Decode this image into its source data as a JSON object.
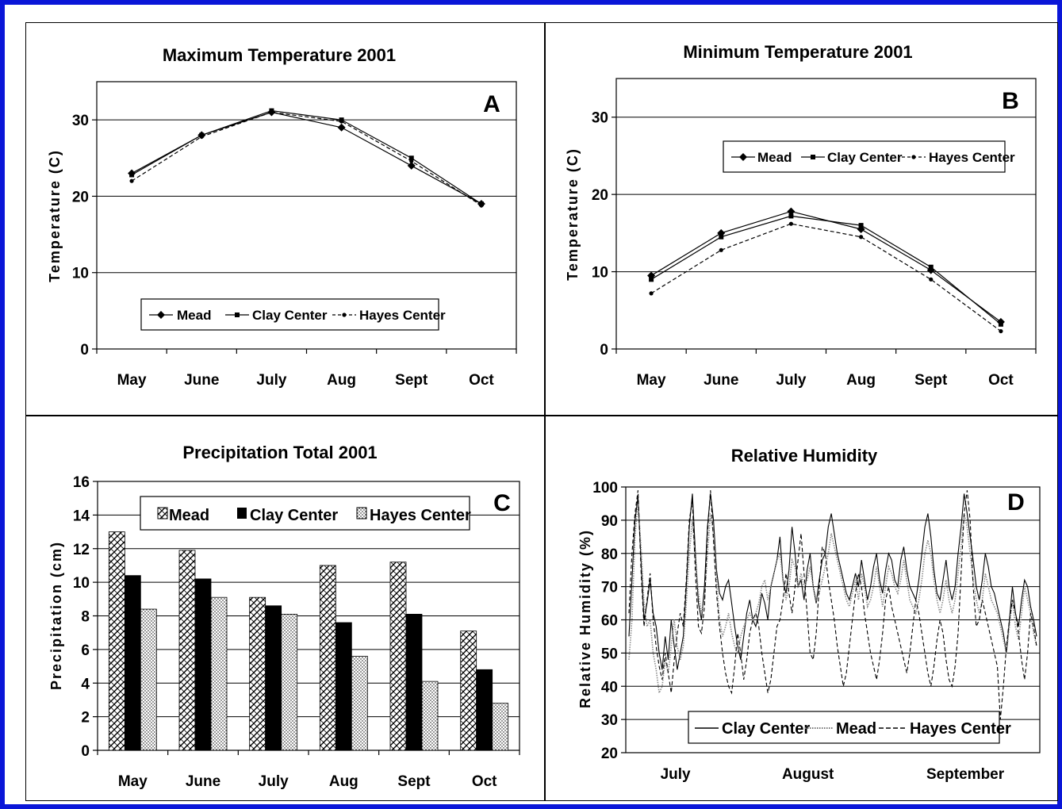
{
  "colors": {
    "frame": "#0a16d8",
    "ink": "#000000",
    "background": "#ffffff"
  },
  "chart_data": [
    {
      "id": "A",
      "type": "line",
      "title": "Maximum Temperature 2001",
      "panel_letter": "A",
      "ylabel": "Temperature (C)",
      "xlabel": "",
      "categories": [
        "May",
        "June",
        "July",
        "Aug",
        "Sept",
        "Oct"
      ],
      "ylim": [
        0,
        35
      ],
      "yticks": [
        0,
        10,
        20,
        30
      ],
      "grid": true,
      "legend": "bottom",
      "series": [
        {
          "name": "Mead",
          "marker": "diamond",
          "dash": "solid",
          "values": [
            23,
            28,
            31,
            29,
            24,
            19
          ]
        },
        {
          "name": "Clay Center",
          "marker": "square",
          "dash": "solid",
          "values": [
            22.8,
            28,
            31.2,
            30,
            25,
            19
          ]
        },
        {
          "name": "Hayes Center",
          "marker": "dot",
          "dash": "dashed",
          "values": [
            22,
            27.8,
            31,
            29.8,
            24.6,
            18.8
          ]
        }
      ]
    },
    {
      "id": "B",
      "type": "line",
      "title": "Minimum Temperature 2001",
      "panel_letter": "B",
      "ylabel": "Temperature (C)",
      "xlabel": "",
      "categories": [
        "May",
        "June",
        "July",
        "Aug",
        "Sept",
        "Oct"
      ],
      "ylim": [
        0,
        35
      ],
      "yticks": [
        0,
        10,
        20,
        30
      ],
      "grid": true,
      "legend": "top",
      "series": [
        {
          "name": "Mead",
          "marker": "diamond",
          "dash": "solid",
          "values": [
            9.5,
            15,
            17.8,
            15.5,
            10.2,
            3.5
          ]
        },
        {
          "name": "Clay Center",
          "marker": "square",
          "dash": "solid",
          "values": [
            9,
            14.5,
            17.2,
            16,
            10.6,
            3.2
          ]
        },
        {
          "name": "Hayes Center",
          "marker": "dot",
          "dash": "dashed",
          "values": [
            7.2,
            12.8,
            16.2,
            14.5,
            9,
            2.3
          ]
        }
      ]
    },
    {
      "id": "C",
      "type": "bar",
      "title": "Precipitation Total 2001",
      "panel_letter": "C",
      "ylabel": "Precipitation (cm)",
      "xlabel": "",
      "categories": [
        "May",
        "June",
        "July",
        "Aug",
        "Sept",
        "Oct"
      ],
      "ylim": [
        0,
        16
      ],
      "yticks": [
        0,
        2,
        4,
        6,
        8,
        10,
        12,
        14,
        16
      ],
      "grid": true,
      "legend": "top",
      "series": [
        {
          "name": "Mead",
          "pattern": "crosshatch",
          "values": [
            13,
            11.9,
            9.1,
            11,
            11.2,
            7.1
          ]
        },
        {
          "name": "Clay Center",
          "pattern": "solid",
          "values": [
            10.4,
            10.2,
            8.6,
            7.6,
            8.1,
            4.8
          ]
        },
        {
          "name": "Hayes Center",
          "pattern": "dotted",
          "values": [
            8.4,
            9.1,
            8.1,
            5.6,
            4.1,
            2.8
          ]
        }
      ]
    },
    {
      "id": "D",
      "type": "line",
      "title": "Relative Humidity",
      "panel_letter": "D",
      "ylabel": "Relative Humidity (%)",
      "xlabel": "",
      "x_tick_labels": [
        "July",
        "August",
        "September"
      ],
      "ylim": [
        20,
        100
      ],
      "yticks": [
        20,
        30,
        40,
        50,
        60,
        70,
        80,
        90,
        100
      ],
      "grid": true,
      "legend": "bottom",
      "series": [
        {
          "name": "Clay Center",
          "style": "solid",
          "values": [
            55,
            72,
            90,
            97,
            78,
            60,
            65,
            72,
            62,
            58,
            50,
            45,
            55,
            48,
            60,
            52,
            45,
            50,
            55,
            70,
            88,
            98,
            80,
            65,
            60,
            70,
            88,
            98,
            90,
            75,
            68,
            66,
            70,
            72,
            65,
            58,
            52,
            48,
            55,
            62,
            66,
            60,
            58,
            62,
            68,
            65,
            60,
            70,
            74,
            78,
            85,
            72,
            68,
            75,
            88,
            80,
            70,
            72,
            66,
            75,
            80,
            70,
            65,
            72,
            78,
            80,
            88,
            92,
            86,
            80,
            76,
            72,
            68,
            66,
            70,
            74,
            70,
            78,
            72,
            66,
            70,
            76,
            80,
            72,
            68,
            75,
            80,
            78,
            72,
            70,
            78,
            82,
            75,
            70,
            68,
            66,
            72,
            80,
            88,
            92,
            85,
            75,
            68,
            66,
            72,
            78,
            70,
            66,
            70,
            80,
            88,
            98,
            92,
            85,
            78,
            70,
            66,
            72,
            80,
            76,
            70,
            68,
            64,
            60,
            56,
            50,
            60,
            70,
            62,
            58,
            66,
            72,
            70,
            64,
            60,
            55
          ]
        },
        {
          "name": "Mead",
          "style": "dotted",
          "values": [
            48,
            60,
            85,
            95,
            82,
            65,
            58,
            60,
            50,
            45,
            38,
            40,
            48,
            44,
            52,
            60,
            52,
            48,
            52,
            65,
            80,
            90,
            78,
            68,
            62,
            66,
            80,
            92,
            86,
            72,
            60,
            55,
            58,
            62,
            56,
            52,
            50,
            55,
            58,
            60,
            62,
            60,
            62,
            65,
            70,
            72,
            66,
            70,
            74,
            78,
            80,
            72,
            66,
            70,
            78,
            76,
            70,
            74,
            70,
            72,
            76,
            70,
            66,
            68,
            72,
            76,
            80,
            86,
            82,
            78,
            74,
            70,
            66,
            64,
            68,
            72,
            66,
            74,
            70,
            64,
            66,
            70,
            76,
            70,
            64,
            70,
            76,
            74,
            70,
            68,
            72,
            78,
            72,
            66,
            64,
            62,
            66,
            72,
            80,
            84,
            80,
            72,
            66,
            62,
            66,
            72,
            66,
            62,
            66,
            74,
            82,
            92,
            88,
            80,
            72,
            66,
            62,
            66,
            74,
            70,
            66,
            64,
            62,
            58,
            54,
            50,
            58,
            66,
            58,
            54,
            62,
            70,
            66,
            62,
            56,
            52
          ]
        },
        {
          "name": "Hayes Center",
          "style": "dashed",
          "values": [
            62,
            80,
            92,
            99,
            75,
            58,
            66,
            74,
            60,
            52,
            46,
            42,
            50,
            44,
            38,
            48,
            56,
            62,
            58,
            72,
            90,
            96,
            74,
            58,
            56,
            64,
            86,
            99,
            84,
            68,
            58,
            50,
            44,
            40,
            38,
            46,
            56,
            50,
            42,
            48,
            56,
            60,
            62,
            58,
            50,
            44,
            38,
            42,
            50,
            58,
            60,
            66,
            74,
            68,
            62,
            70,
            78,
            86,
            74,
            62,
            50,
            48,
            56,
            70,
            82,
            80,
            72,
            66,
            60,
            52,
            46,
            40,
            44,
            52,
            60,
            68,
            74,
            70,
            62,
            56,
            50,
            46,
            42,
            48,
            56,
            66,
            70,
            64,
            60,
            56,
            52,
            48,
            44,
            50,
            58,
            66,
            62,
            56,
            50,
            44,
            40,
            46,
            54,
            60,
            56,
            48,
            42,
            40,
            46,
            56,
            74,
            92,
            99,
            90,
            70,
            58,
            60,
            66,
            62,
            58,
            54,
            50,
            46,
            30,
            40,
            52,
            60,
            66,
            62,
            56,
            48,
            42,
            50,
            62,
            58,
            52
          ]
        }
      ]
    }
  ]
}
